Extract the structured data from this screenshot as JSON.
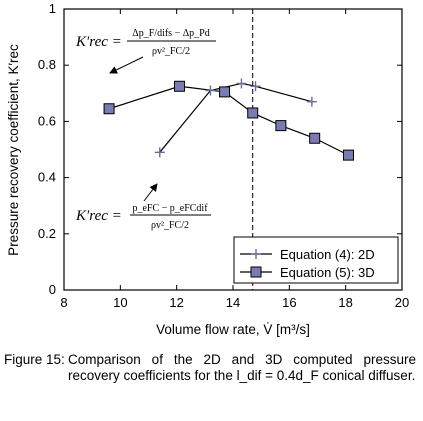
{
  "caption": {
    "label": "Figure 15:",
    "text": "Comparison of the 2D and 3D computed pressure recovery coefficients for the l_dif = 0.4d_F conical diffuser."
  },
  "chart_data": {
    "type": "line",
    "xlabel": "Volume flow rate, V̇ [m³/s]",
    "ylabel": "Pressure recovery coefficient, K′rec",
    "xlim": [
      8,
      20
    ],
    "ylim": [
      0,
      1
    ],
    "xticks": [
      8,
      10,
      12,
      14,
      16,
      18,
      20
    ],
    "yticks": [
      0,
      0.2,
      0.4,
      0.6,
      0.8,
      1
    ],
    "xtick_labels": [
      "8",
      "10",
      "12",
      "14",
      "16",
      "18",
      "20"
    ],
    "ytick_labels": [
      "0",
      "0.2",
      "0.4",
      "0.6",
      "0.8",
      "1"
    ],
    "grid": false,
    "legend_position": "bottom-right",
    "vertical_reference_line": {
      "x": 14.7,
      "style": "dashed"
    },
    "series": [
      {
        "name": "Equation (4): 2D",
        "marker": "plus",
        "x": [
          11.4,
          13.2,
          14.3,
          14.8,
          16.8
        ],
        "y": [
          0.49,
          0.71,
          0.735,
          0.725,
          0.67
        ]
      },
      {
        "name": "Equation (5): 3D",
        "marker": "square",
        "x": [
          9.6,
          12.1,
          13.7,
          14.7,
          15.7,
          16.9,
          18.1
        ],
        "y": [
          0.645,
          0.725,
          0.705,
          0.63,
          0.585,
          0.54,
          0.48
        ]
      }
    ],
    "annotations": [
      {
        "symbol": "K′rec =",
        "numerator": "Δp_F/difs − Δp_Pd",
        "denominator": "ρv²_FC/2",
        "points_to_series": "Equation (5): 3D"
      },
      {
        "symbol": "K′rec =",
        "numerator": "p_eFC − p_eFCdif",
        "denominator": "ρv²_FC/2",
        "points_to_series": "Equation (4): 2D"
      }
    ],
    "colors": {
      "line": "#000000",
      "marker_fill": "#7b7bb3",
      "plus_marker": "#6b6b9a"
    }
  }
}
